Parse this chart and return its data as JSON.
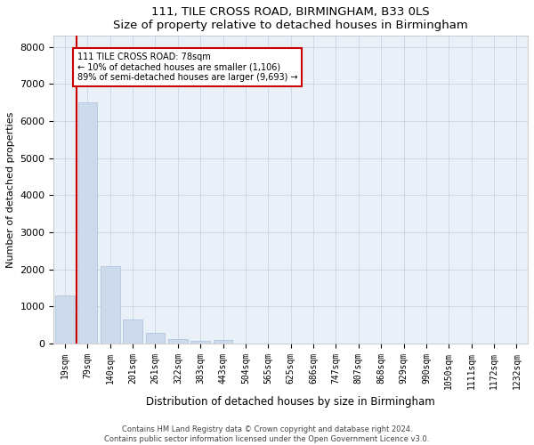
{
  "title": "111, TILE CROSS ROAD, BIRMINGHAM, B33 0LS",
  "subtitle": "Size of property relative to detached houses in Birmingham",
  "xlabel": "Distribution of detached houses by size in Birmingham",
  "ylabel": "Number of detached properties",
  "bar_values": [
    1300,
    6500,
    2080,
    650,
    280,
    120,
    70,
    90,
    0,
    0,
    0,
    0,
    0,
    0,
    0,
    0,
    0,
    0,
    0,
    0,
    0
  ],
  "bar_labels": [
    "19sqm",
    "79sqm",
    "140sqm",
    "201sqm",
    "261sqm",
    "322sqm",
    "383sqm",
    "443sqm",
    "504sqm",
    "565sqm",
    "625sqm",
    "686sqm",
    "747sqm",
    "807sqm",
    "868sqm",
    "929sqm",
    "990sqm",
    "1050sqm",
    "1111sqm",
    "1172sqm",
    "1232sqm"
  ],
  "bar_color": "#ccdaeb",
  "bar_edgecolor": "#aabfd8",
  "annotation_title": "111 TILE CROSS ROAD: 78sqm",
  "annotation_line2": "← 10% of detached houses are smaller (1,106)",
  "annotation_line3": "89% of semi-detached houses are larger (9,693) →",
  "vline_color": "#cc0000",
  "annotation_box_edgecolor": "#cc0000",
  "vline_pos": 0.5,
  "ylim": [
    0,
    8300
  ],
  "yticks": [
    0,
    1000,
    2000,
    3000,
    4000,
    5000,
    6000,
    7000,
    8000
  ],
  "footer_line1": "Contains HM Land Registry data © Crown copyright and database right 2024.",
  "footer_line2": "Contains public sector information licensed under the Open Government Licence v3.0.",
  "background_color": "#ffffff",
  "plot_bg_color": "#eaf0f8",
  "grid_color": "#c8d4e8",
  "fig_width": 6.0,
  "fig_height": 5.0,
  "dpi": 100
}
